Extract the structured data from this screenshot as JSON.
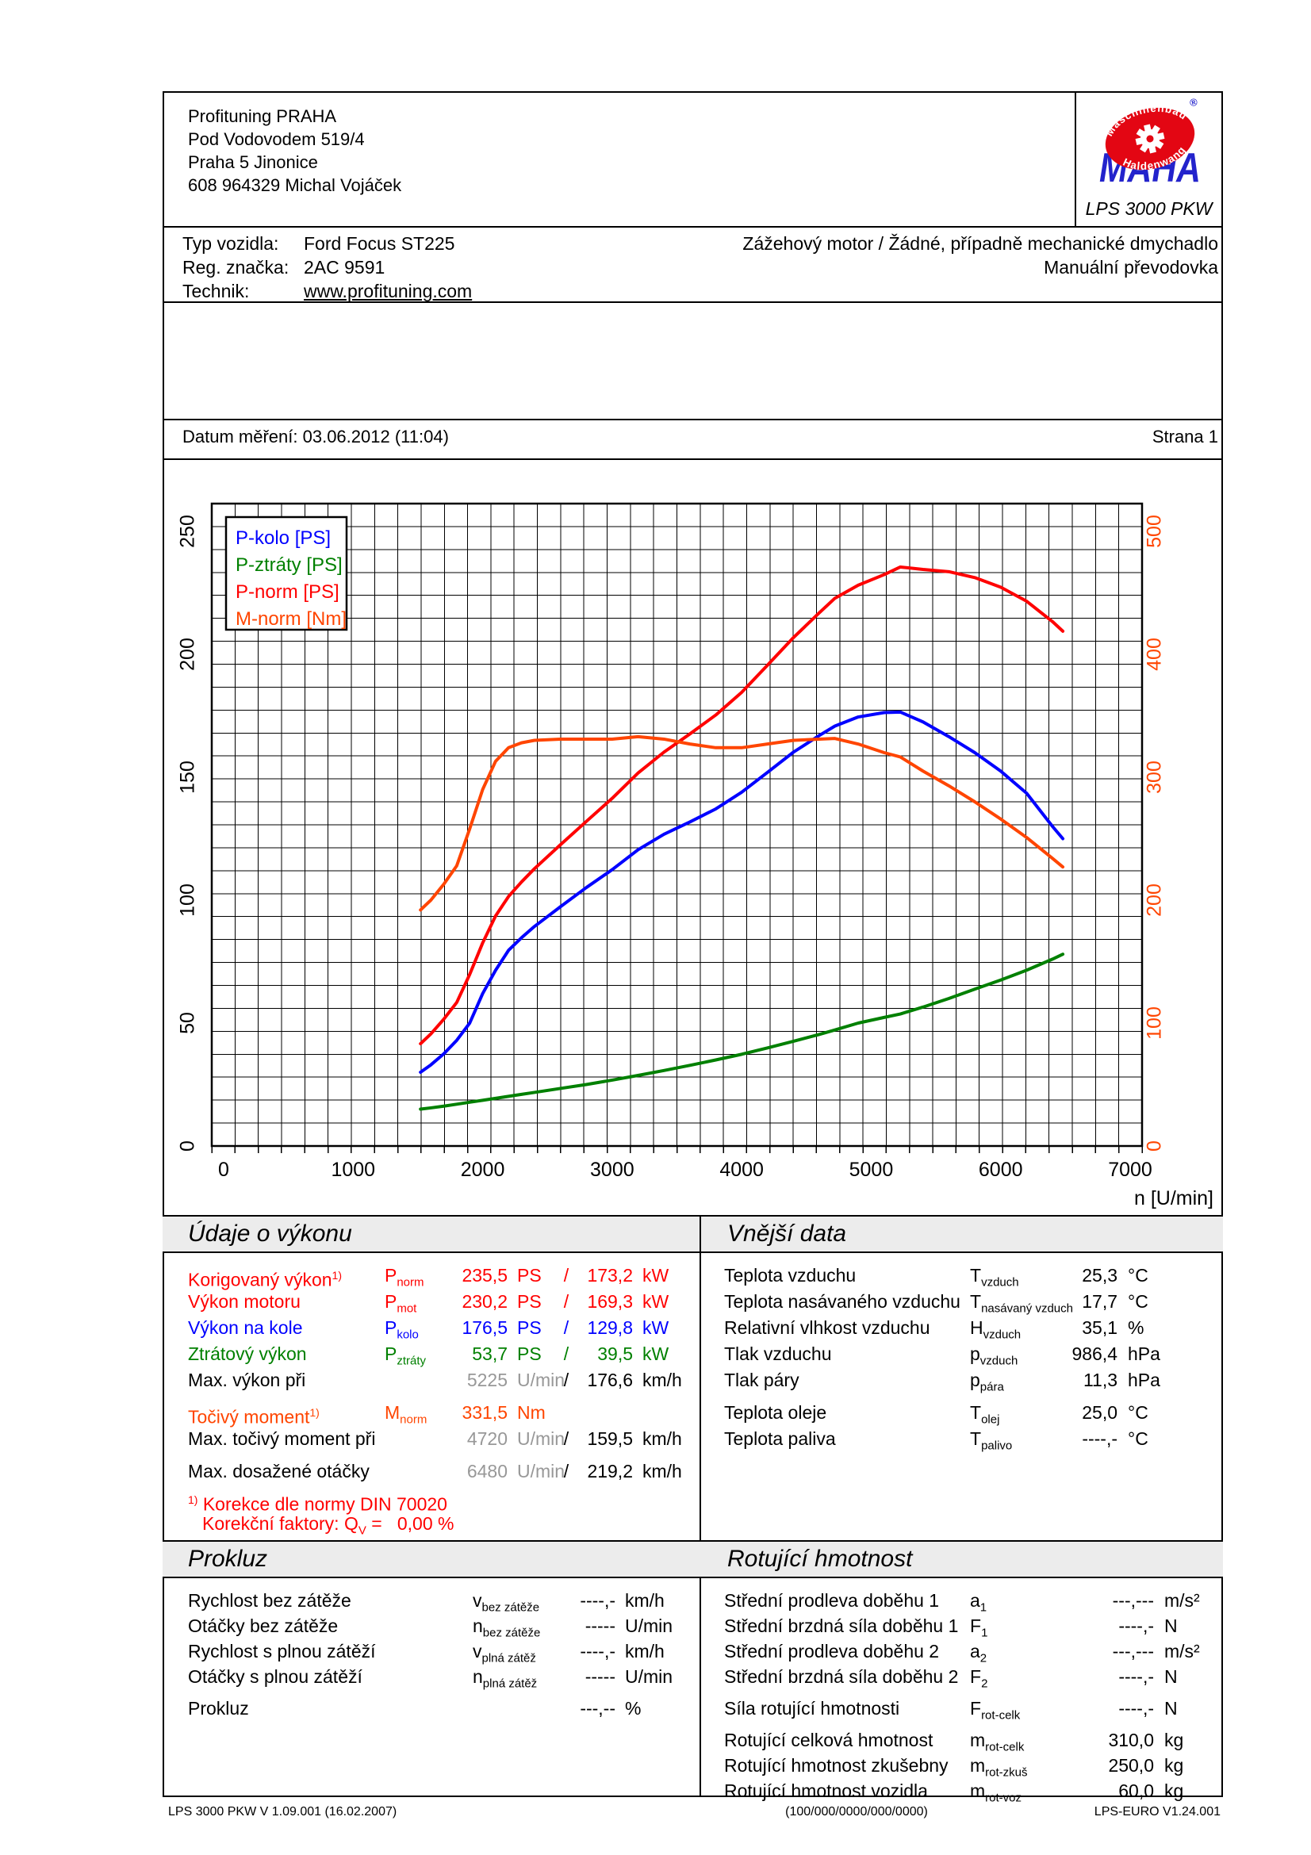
{
  "header": {
    "company_lines": [
      "Profituning PRAHA",
      "Pod Vodovodem 519/4",
      "Praha 5 Jinonice",
      "608 964329 Michal Vojáček"
    ],
    "logo": {
      "badge_top": "Maschinenbau",
      "badge_bottom": "Haldenwang",
      "registered": "®",
      "brand": "MAHA",
      "device": "LPS 3000 PKW",
      "red": "#e30613",
      "blue": "#2323cc"
    }
  },
  "vehicle": {
    "rows": [
      {
        "label": "Typ vozidla:",
        "value": "Ford Focus ST225",
        "link": false
      },
      {
        "label": "Reg. značka:",
        "value": "2AC 9591",
        "link": false
      },
      {
        "label": "Technik:",
        "value": "www.profituning.com",
        "link": true
      }
    ],
    "engine_line": "Zážehový motor / Žádné, případně mechanické dmychadlo",
    "gearbox_line": "Manuální převodovka"
  },
  "measurement": {
    "date_label": "Datum měření: 03.06.2012 (11:04)",
    "page_label": "Strana 1"
  },
  "chart_data": {
    "type": "line",
    "x_label": "n [U/min]",
    "x_ticks": [
      0,
      1000,
      2000,
      3000,
      4000,
      5000,
      6000,
      7000
    ],
    "left_axis": {
      "unit": "PS",
      "ticks": [
        0,
        50,
        100,
        150,
        200,
        250
      ],
      "color": "#000000",
      "range": [
        0,
        250
      ]
    },
    "right_axis": {
      "unit": "Nm",
      "ticks": [
        0,
        100,
        200,
        300,
        400,
        500
      ],
      "color": "#ff4500",
      "range": [
        0,
        500
      ]
    },
    "grid": true,
    "legend_position": "top-left",
    "legend": [
      "P-kolo [PS]",
      "P-ztráty [PS]",
      "P-norm [PS]",
      "M-norm [Nm]"
    ],
    "x": [
      1520,
      1600,
      1700,
      1800,
      1900,
      2000,
      2100,
      2200,
      2300,
      2400,
      2600,
      2800,
      3000,
      3200,
      3400,
      3600,
      3800,
      4000,
      4200,
      4400,
      4600,
      4720,
      4900,
      5100,
      5225,
      5400,
      5600,
      5800,
      6000,
      6200,
      6400,
      6480
    ],
    "series": [
      {
        "name": "P-kolo [PS]",
        "color": "#0000ff",
        "axis": "left",
        "values": [
          30,
          33,
          37.5,
          43,
          50,
          62,
          71.5,
          79.6,
          84.7,
          89.3,
          97.3,
          105.1,
          112.4,
          120.5,
          126.8,
          131.8,
          137.1,
          143.9,
          152,
          160.2,
          167,
          170.8,
          174.5,
          176.3,
          176.5,
          172.5,
          166.5,
          160,
          152.5,
          143.5,
          130,
          125
        ]
      },
      {
        "name": "P-ztráty [PS]",
        "color": "#008000",
        "axis": "left",
        "values": [
          15,
          15.5,
          16.2,
          17,
          17.8,
          18.6,
          19.4,
          20.2,
          21,
          21.8,
          23.4,
          25,
          26.8,
          28.7,
          30.7,
          32.8,
          35,
          37.3,
          39.9,
          42.6,
          45.4,
          47.2,
          50,
          52.3,
          53.7,
          56.5,
          60,
          63.8,
          67.5,
          71.5,
          76,
          78
        ]
      },
      {
        "name": "P-norm [PS]",
        "color": "#ff0000",
        "axis": "left",
        "values": [
          41.6,
          45.6,
          51.6,
          58.4,
          69.8,
          82.6,
          93.6,
          101.5,
          107.4,
          112.8,
          122.5,
          132,
          141.4,
          151.7,
          160.2,
          167.6,
          175.3,
          184.5,
          195.6,
          206.8,
          216.9,
          222.8,
          228.1,
          232.4,
          235.5,
          234.5,
          233.6,
          231.2,
          227.3,
          221.6,
          213.3,
          209.4
        ]
      },
      {
        "name": "M-norm [Nm]",
        "color": "#ff4500",
        "axis": "right",
        "values": [
          192,
          200,
          213,
          228,
          258,
          290,
          313,
          324,
          328,
          330,
          331,
          331,
          331,
          333,
          331,
          327,
          324,
          324,
          327,
          330,
          331,
          331.5,
          327,
          320,
          316.5,
          305,
          293,
          280,
          266,
          251,
          234,
          227
        ]
      }
    ]
  },
  "sections": {
    "power": {
      "title": "Údaje o výkonu",
      "rows": [
        {
          "label": "Korigovaný výkon",
          "sup": "1)",
          "c": "#ff0000",
          "sym": "P",
          "sub": "norm",
          "v1": "235,5",
          "u1": "PS",
          "sl": "/",
          "v2": "173,2",
          "u2": "kW"
        },
        {
          "label": "Výkon motoru",
          "c": "#ff0000",
          "sym": "P",
          "sub": "mot",
          "v1": "230,2",
          "u1": "PS",
          "sl": "/",
          "v2": "169,3",
          "u2": "kW"
        },
        {
          "label": "Výkon na kole",
          "c": "#0000ff",
          "sym": "P",
          "sub": "kolo",
          "v1": "176,5",
          "u1": "PS",
          "sl": "/",
          "v2": "129,8",
          "u2": "kW"
        },
        {
          "label": "Ztrátový výkon",
          "c": "#008000",
          "sym": "P",
          "sub": "ztráty",
          "v1": "53,7",
          "u1": "PS",
          "sl": "/",
          "v2": "39,5",
          "u2": "kW"
        },
        {
          "label": "Max. výkon při",
          "v1": "5225",
          "u1": "U/min",
          "c1": "#989898",
          "sl": "/",
          "v2": "176,6",
          "u2": "km/h"
        },
        {
          "gap": true
        },
        {
          "label": "Točivý moment",
          "sup": "1)",
          "c": "#ff4500",
          "sym": "M",
          "sub": "norm",
          "v1": "331,5",
          "u1": "Nm"
        },
        {
          "label": "Max. točivý moment při",
          "v1": "4720",
          "u1": "U/min",
          "c1": "#989898",
          "sl": "/",
          "v2": "159,5",
          "u2": "km/h"
        },
        {
          "gap": true
        },
        {
          "label": "Max. dosažené otáčky",
          "v1": "6480",
          "u1": "U/min",
          "c1": "#989898",
          "sl": "/",
          "v2": "219,2",
          "u2": "km/h"
        }
      ],
      "note1_sup": "1)",
      "note1": " Korekce dle normy DIN 70020",
      "note2_prefix": "Korekční faktory: Q",
      "note2_sub": "V",
      "note2_mid": " =   ",
      "note2_value": "0,00 %"
    },
    "ambient": {
      "title": "Vnější data",
      "rows": [
        {
          "label": "Teplota vzduchu",
          "sym": "T",
          "sub": "vzduch",
          "v1": "25,3",
          "u1": "°C"
        },
        {
          "label": "Teplota nasávaného vzduchu",
          "sym": "T",
          "sub": "nasávaný vzduch",
          "v1": "17,7",
          "u1": "°C"
        },
        {
          "label": "Relativní vlhkost vzduchu",
          "sym": "H",
          "sub": "vzduch",
          "v1": "35,1",
          "u1": "%"
        },
        {
          "label": "Tlak vzduchu",
          "sym": "p",
          "sub": "vzduch",
          "v1": "986,4",
          "u1": "hPa"
        },
        {
          "label": "Tlak páry",
          "sym": "p",
          "sub": "pára",
          "v1": "11,3",
          "u1": "hPa"
        },
        {
          "gap": true
        },
        {
          "label": "Teplota oleje",
          "sym": "T",
          "sub": "olej",
          "v1": "25,0",
          "u1": "°C"
        },
        {
          "label": "Teplota paliva",
          "sym": "T",
          "sub": "palivo",
          "v1": "----,-",
          "u1": "°C"
        }
      ]
    },
    "slip": {
      "title": "Prokluz",
      "rows": [
        {
          "label": "Rychlost bez zátěže",
          "sym": "v",
          "sub": "bez zátěže",
          "v1": "----,-",
          "u1": "km/h"
        },
        {
          "label": "Otáčky bez zátěže",
          "sym": "n",
          "sub": "bez zátěže",
          "v1": "-----",
          "u1": "U/min"
        },
        {
          "label": "Rychlost s plnou zátěží",
          "sym": "v",
          "sub": "plná zátěž",
          "v1": "----,-",
          "u1": "km/h"
        },
        {
          "label": "Otáčky s plnou zátěží",
          "sym": "n",
          "sub": "plná zátěž",
          "v1": "-----",
          "u1": "U/min"
        },
        {
          "gap": true
        },
        {
          "label": "Prokluz",
          "v1": "---,--",
          "u1": "%"
        }
      ]
    },
    "rotating": {
      "title": "Rotující hmotnost",
      "rows": [
        {
          "label": "Střední prodleva doběhu 1",
          "sym": "a",
          "sub": "1",
          "v1": "---,---",
          "u1": "m/s²"
        },
        {
          "label": "Střední brzdná síla doběhu 1",
          "sym": "F",
          "sub": "1",
          "v1": "----,-",
          "u1": "N"
        },
        {
          "label": "Střední prodleva doběhu 2",
          "sym": "a",
          "sub": "2",
          "v1": "---,---",
          "u1": "m/s²"
        },
        {
          "label": "Střední brzdná síla doběhu 2",
          "sym": "F",
          "sub": "2",
          "v1": "----,-",
          "u1": "N"
        },
        {
          "gap": true
        },
        {
          "label": "Síla rotující hmotnosti",
          "sym": "F",
          "sub": "rot-celk",
          "v1": "----,-",
          "u1": "N"
        },
        {
          "gap": true
        },
        {
          "label": "Rotující celková hmotnost",
          "sym": "m",
          "sub": "rot-celk",
          "v1": "310,0",
          "u1": "kg"
        },
        {
          "label": "Rotující hmotnost zkušebny",
          "sym": "m",
          "sub": "rot-zkuš",
          "v1": "250,0",
          "u1": "kg"
        },
        {
          "label": "Rotující hmotnost vozidla",
          "sym": "m",
          "sub": "rot-voz",
          "v1": "60,0",
          "u1": "kg"
        }
      ]
    }
  },
  "footer": {
    "left": "LPS 3000 PKW V 1.09.001 (16.02.2007)",
    "center": "(100/000/0000/000/0000)",
    "right": "LPS-EURO V1.24.001"
  }
}
